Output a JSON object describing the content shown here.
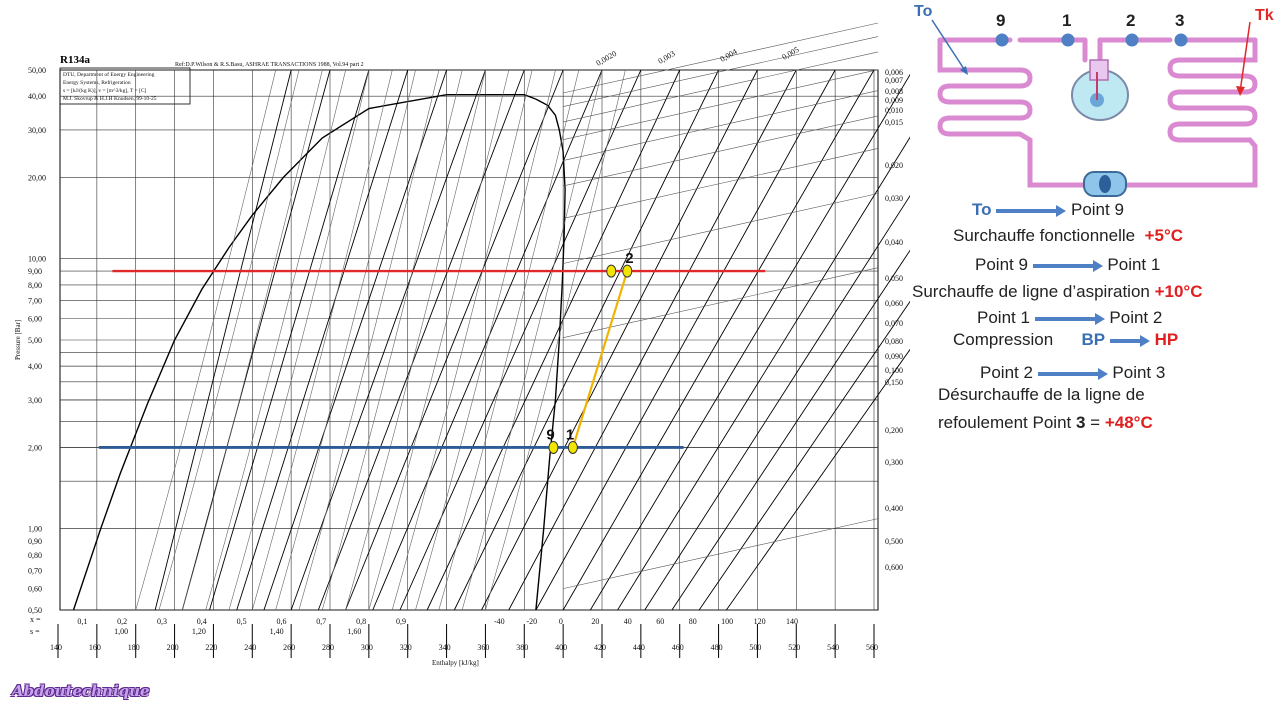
{
  "chart_title": "R134a",
  "header_ref": "Ref:D.P.Wilson & R.S.Basu, ASHRAE TRANSACTIONS 1988, Vol.94 part 2",
  "legend_box": [
    "DTU, Department of Energy Engineering",
    "Energy Systems, Refrigeration",
    "s = [kJ/(kg K)], v = [m^3/kg], T = [C]",
    "M.J. Skovrup & H.J.H Knudsen, 99-10-25"
  ],
  "y_axis_label": "Pressure [Bar]",
  "x_axis_label": "Enthalpy [kJ/kg]",
  "x_row_label": "x =",
  "s_row_label": "s =",
  "pressure_ticks": [
    "50,00",
    "40,00",
    "30,00",
    "20,00",
    "10,00",
    "9,00",
    "8,00",
    "7,00",
    "6,00",
    "5,00",
    "4,00",
    "3,00",
    "2,00",
    "1,00",
    "0,90",
    "0,80",
    "0,70",
    "0,60",
    "0,50"
  ],
  "pressure_values": [
    50,
    40,
    30,
    20,
    10,
    9,
    8,
    7,
    6,
    5,
    4,
    3,
    2,
    1,
    0.9,
    0.8,
    0.7,
    0.6,
    0.5
  ],
  "enthalpy_ticks": [
    "140",
    "160",
    "180",
    "200",
    "220",
    "240",
    "260",
    "280",
    "300",
    "320",
    "340",
    "360",
    "380",
    "400",
    "420",
    "440",
    "460",
    "480",
    "500",
    "520",
    "540",
    "560"
  ],
  "quality_ticks": [
    "0,1",
    "0,2",
    "0,3",
    "0,4",
    "0,5",
    "0,6",
    "0,7",
    "0,8",
    "0,9"
  ],
  "entropy_low_ticks": [
    "1,00",
    "1,20",
    "1,40",
    "1,60"
  ],
  "bottom_temp_ticks": [
    "-40",
    "-20",
    "0",
    "20",
    "40",
    "60",
    "80",
    "100",
    "120",
    "140"
  ],
  "right_volume_ticks": [
    "0,006",
    "0,007",
    "0,008",
    "0,009",
    "0,010",
    "0,015",
    "0,020",
    "0,030",
    "0,040",
    "0,050",
    "0,060",
    "0,070",
    "0,080",
    "0,090",
    "0,100",
    "0,150",
    "0,200",
    "0,300",
    "0,400",
    "0,500",
    "0,600"
  ],
  "top_volume_ticks": [
    "0,0020",
    "0,003",
    "0,004",
    "0,005"
  ],
  "points": [
    {
      "label": "9",
      "h": 395,
      "p": 2.0
    },
    {
      "label": "1",
      "h": 405,
      "p": 2.0
    },
    {
      "label": "2",
      "h": 433,
      "p": 9.0
    }
  ],
  "low_pressure_line": {
    "p": 2.0,
    "h_start": 161,
    "h_end": 462
  },
  "high_pressure_line": {
    "p": 9.0,
    "h_start": 168,
    "h_end": 504
  },
  "compression_line": {
    "from": "1",
    "to": "2"
  },
  "colors": {
    "high": "#e02828",
    "low": "#2e5b96",
    "compression": "#f0b400",
    "points": "#f2e600",
    "pipe": "#d98ad0",
    "nodes": "#4f7fc4",
    "to_label": "#3a6fb4",
    "tk_label": "#e02828"
  },
  "diagram": {
    "to_label": "To",
    "tk_label": "Tk",
    "node_labels": [
      "9",
      "1",
      "2",
      "3"
    ]
  },
  "annotations": [
    {
      "id": "to-point9",
      "from": "To",
      "to": "Point 9"
    },
    {
      "id": "surchauffe",
      "text": "Surchauffe fonctionnelle",
      "value": "+5°C"
    },
    {
      "id": "p9-p1",
      "from": "Point 9",
      "to": "Point 1"
    },
    {
      "id": "surchauffe-ligne",
      "text": "Surchauffe de ligne d’aspiration",
      "value": "+10°C"
    },
    {
      "id": "p1-p2",
      "from": "Point 1",
      "to": "Point 2"
    },
    {
      "id": "compression",
      "text": "Compression",
      "from": "BP",
      "to": "HP"
    },
    {
      "id": "p2-p3",
      "from": "Point 2",
      "to": "Point 3"
    },
    {
      "id": "desurchauffe1",
      "text": "Désurchauffe de la ligne de"
    },
    {
      "id": "desurchauffe2",
      "text": "refoulement  Point",
      "point": "3",
      "eq": " = ",
      "value": "+48°C"
    }
  ],
  "watermark": "Abdoutechnique"
}
